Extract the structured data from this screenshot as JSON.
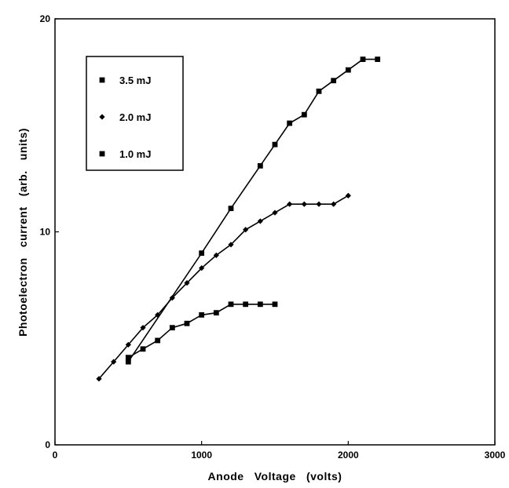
{
  "chart_data": {
    "type": "line",
    "xlabel": "Anode   Voltage   (volts)",
    "ylabel": "Photoelectron   current   (arb.   units)",
    "xlim": [
      0,
      3000
    ],
    "ylim": [
      0,
      20
    ],
    "x_ticks": [
      "0",
      "1000",
      "2000",
      "3000"
    ],
    "y_ticks": [
      "0",
      "10",
      "20"
    ],
    "grid": false,
    "legend_position": "top-left",
    "series": [
      {
        "name": "3.5 mJ",
        "marker": "square",
        "points": [
          [
            500,
            3.9
          ],
          [
            1000,
            9.0
          ],
          [
            1200,
            11.1
          ],
          [
            1400,
            13.1
          ],
          [
            1500,
            14.1
          ],
          [
            1600,
            15.1
          ],
          [
            1700,
            15.5
          ],
          [
            1800,
            16.6
          ],
          [
            1900,
            17.1
          ],
          [
            2000,
            17.6
          ],
          [
            2100,
            18.1
          ],
          [
            2200,
            18.1
          ]
        ]
      },
      {
        "name": "2.0 mJ",
        "marker": "diamond",
        "points": [
          [
            300,
            3.1
          ],
          [
            400,
            3.9
          ],
          [
            500,
            4.7
          ],
          [
            600,
            5.5
          ],
          [
            700,
            6.1
          ],
          [
            800,
            6.9
          ],
          [
            900,
            7.6
          ],
          [
            1000,
            8.3
          ],
          [
            1100,
            8.9
          ],
          [
            1200,
            9.4
          ],
          [
            1300,
            10.1
          ],
          [
            1400,
            10.5
          ],
          [
            1500,
            10.9
          ],
          [
            1600,
            11.3
          ],
          [
            1700,
            11.3
          ],
          [
            1800,
            11.3
          ],
          [
            1900,
            11.3
          ],
          [
            2000,
            11.7
          ]
        ]
      },
      {
        "name": "1.0 mJ",
        "marker": "square",
        "points": [
          [
            500,
            4.1
          ],
          [
            600,
            4.5
          ],
          [
            700,
            4.9
          ],
          [
            800,
            5.5
          ],
          [
            900,
            5.7
          ],
          [
            1000,
            6.1
          ],
          [
            1100,
            6.2
          ],
          [
            1200,
            6.6
          ],
          [
            1300,
            6.6
          ],
          [
            1400,
            6.6
          ],
          [
            1500,
            6.6
          ]
        ]
      }
    ]
  }
}
